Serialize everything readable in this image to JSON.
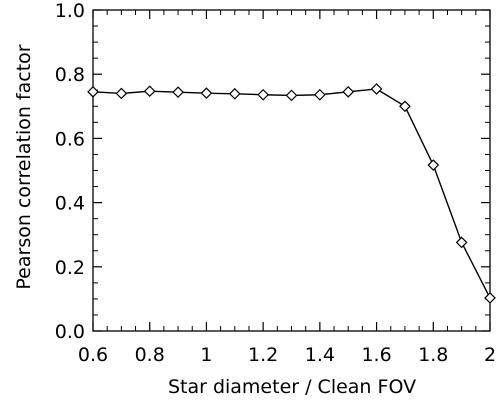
{
  "chart_data": {
    "type": "line",
    "title": "",
    "xlabel": "Star diameter / Clean FOV",
    "ylabel": "Pearson correlation factor",
    "xlim": [
      0.6,
      2.0
    ],
    "ylim": [
      0.0,
      1.0
    ],
    "x_ticks": [
      0.6,
      0.8,
      1.0,
      1.2,
      1.4,
      1.6,
      1.8,
      2.0
    ],
    "x_tick_labels": [
      "0.6",
      "0.8",
      "1",
      "1.2",
      "1.4",
      "1.6",
      "1.8",
      "2"
    ],
    "y_ticks": [
      0.0,
      0.2,
      0.4,
      0.6,
      0.8,
      1.0
    ],
    "y_tick_labels": [
      "0.0",
      "0.2",
      "0.4",
      "0.6",
      "0.8",
      "1.0"
    ],
    "grid": false,
    "marker": "diamond",
    "series": [
      {
        "x": [
          0.6,
          0.7,
          0.8,
          0.9,
          1.0,
          1.1,
          1.2,
          1.3,
          1.4,
          1.5,
          1.6,
          1.7,
          1.8,
          1.9,
          2.0
        ],
        "y": [
          0.745,
          0.74,
          0.747,
          0.744,
          0.741,
          0.739,
          0.736,
          0.734,
          0.736,
          0.745,
          0.754,
          0.7,
          0.517,
          0.276,
          0.103
        ]
      }
    ],
    "colors": {
      "line": "#000000",
      "axes": "#000000"
    }
  }
}
